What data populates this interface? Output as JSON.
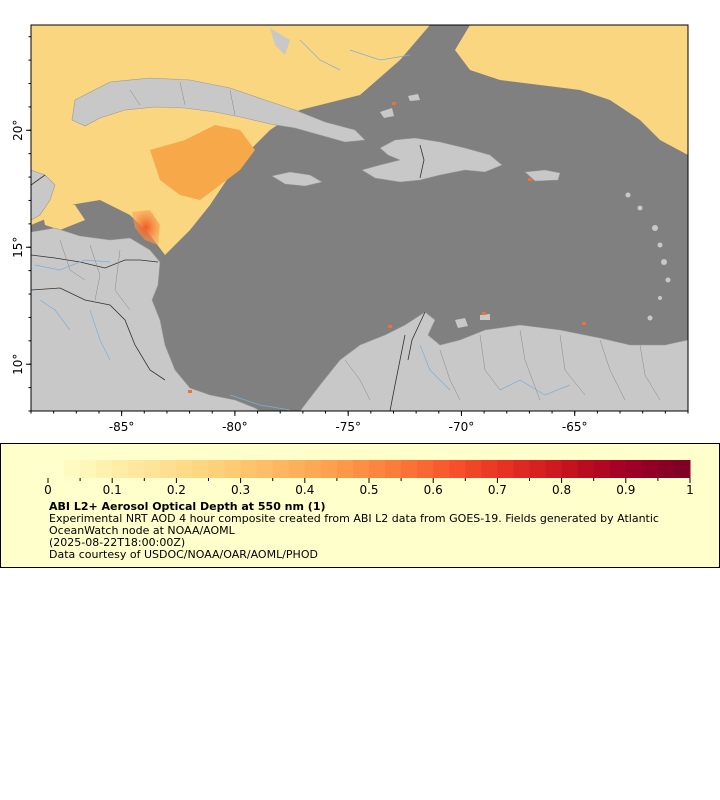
{
  "map": {
    "lon_range": [
      -89,
      -60
    ],
    "lat_range": [
      8,
      24.5
    ],
    "lon_ticks": [
      {
        "value": -85,
        "label": "-85°"
      },
      {
        "value": -80,
        "label": "-80°"
      },
      {
        "value": -75,
        "label": "-75°"
      },
      {
        "value": -70,
        "label": "-70°"
      },
      {
        "value": -65,
        "label": "-65°"
      }
    ],
    "lat_ticks": [
      {
        "value": 20,
        "label": "20°"
      },
      {
        "value": 15,
        "label": "15°"
      },
      {
        "value": 10,
        "label": "10°"
      }
    ],
    "colors": {
      "ocean_no_data": "#808080",
      "land": "#c8c8c8",
      "rivers": "#7ab0d8",
      "borders": "#555555",
      "aod_low": "#ffe8a0",
      "aod_mid": "#f8b850",
      "aod_high": "#f07030"
    }
  },
  "legend": {
    "colorbar": {
      "min": 0,
      "max": 1,
      "tick_labels": [
        "0",
        "0.1",
        "0.2",
        "0.3",
        "0.4",
        "0.5",
        "0.6",
        "0.7",
        "0.8",
        "0.9",
        "1"
      ],
      "colors": [
        "#ffffcc",
        "#ffefa8",
        "#fedf90",
        "#fecd74",
        "#feb560",
        "#fd9b4a",
        "#fc7a39",
        "#f6522b",
        "#e42d22",
        "#c5121f",
        "#a10026",
        "#800026"
      ]
    },
    "title": "ABI L2+ Aerosol Optical Depth at 550 nm (1)",
    "description": "Experimental NRT AOD 4 hour composite created from ABI L2 data from GOES-19. Fields generated by Atlantic OceanWatch node at NOAA/AOML",
    "timestamp": "(2025-08-22T18:00:00Z)",
    "credit": "Data courtesy of USDOC/NOAA/OAR/AOML/PHOD"
  }
}
